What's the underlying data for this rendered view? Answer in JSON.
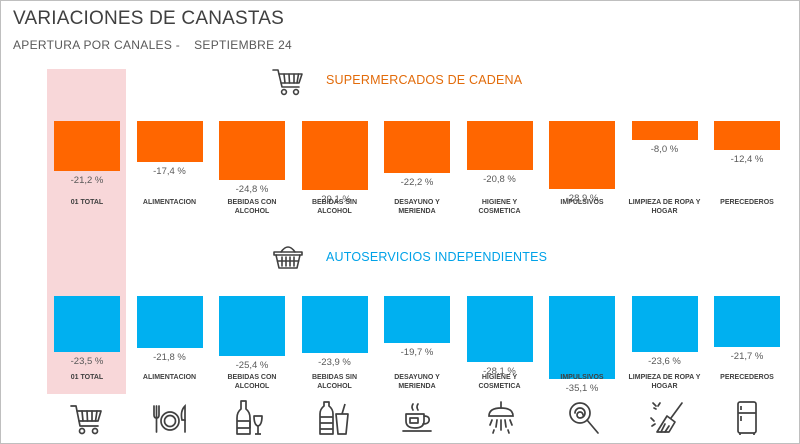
{
  "header": {
    "title": "VARIACIONES DE CANASTAS",
    "subtitle_left": "APERTURA POR CANALES -",
    "subtitle_right": "SEPTIEMBRE 24"
  },
  "colors": {
    "supermercados": "#ff6600",
    "autoservicios": "#00b0f0",
    "highlight": "#f8d7d9",
    "supermercados_title": "#e26b0a",
    "autoservicios_title": "#00a2e8"
  },
  "chart_data": {
    "type": "bar",
    "title": "VARIACIONES DE CANASTAS",
    "subtitle": "APERTURA POR CANALES - SEPTIEMBRE 24",
    "categories": [
      "01 TOTAL",
      "ALIMENTACION",
      "BEBIDAS CON ALCOHOL",
      "BEBIDAS SIN ALCOHOL",
      "DESAYUNO Y MERIENDA",
      "HIGIENE Y COSMETICA",
      "IMPULSIVOS",
      "LIMPIEZA DE ROPA Y HOGAR",
      "PERECEDEROS"
    ],
    "category_lines": [
      [
        "01 TOTAL"
      ],
      [
        "ALIMENTACION"
      ],
      [
        "BEBIDAS CON",
        "ALCOHOL"
      ],
      [
        "BEBIDAS SIN",
        "ALCOHOL"
      ],
      [
        "DESAYUNO Y",
        "MERIENDA"
      ],
      [
        "HIGIENE Y",
        "COSMETICA"
      ],
      [
        "IMPULSIVOS"
      ],
      [
        "LIMPIEZA DE ROPA Y",
        "HOGAR"
      ],
      [
        "PERECEDEROS"
      ]
    ],
    "unit": "%",
    "ylim": [
      -35.1,
      0
    ],
    "series": [
      {
        "name": "SUPERMERCADOS DE CADENA",
        "values": [
          -21.2,
          -17.4,
          -24.8,
          -29.1,
          -22.2,
          -20.8,
          -28.9,
          -8.0,
          -12.4
        ],
        "labels": [
          "-21,2 %",
          "-17,4 %",
          "-24,8 %",
          "-29,1 %",
          "-22,2 %",
          "-20,8 %",
          "-28,9 %",
          "-8,0 %",
          "-12,4 %"
        ]
      },
      {
        "name": "AUTOSERVICIOS INDEPENDIENTES",
        "values": [
          -23.5,
          -21.8,
          -25.4,
          -23.9,
          -19.7,
          -28.1,
          -35.1,
          -23.6,
          -21.7
        ],
        "labels": [
          "-23,5 %",
          "-21,8 %",
          "-25,4 %",
          "-23,9 %",
          "-19,7 %",
          "-28,1 %",
          "-35,1 %",
          "-23,6 %",
          "-21,7 %"
        ]
      }
    ],
    "highlighted_category": "01 TOTAL"
  },
  "icons": {
    "section_supermercados": "shopping-cart-icon",
    "section_autoservicios": "shopping-basket-icon",
    "categories": [
      "shopping-cart-icon",
      "cutlery-plate-icon",
      "wine-bottle-glass-icon",
      "soda-bottle-cup-icon",
      "coffee-cup-icon",
      "shower-icon",
      "lollipop-icon",
      "cleaning-broom-icon",
      "refrigerator-icon"
    ]
  }
}
